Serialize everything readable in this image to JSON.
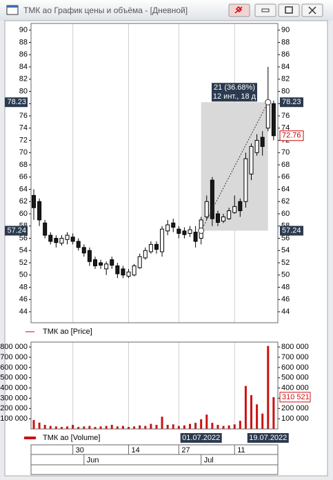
{
  "window": {
    "title": "ТМК ао График цены и объёма - [Дневной]"
  },
  "chart_data": [
    {
      "type": "candlestick",
      "legend": "ТМК ао [Price]",
      "open": [
        63,
        62,
        58.5,
        56.5,
        56,
        55.2,
        55.8,
        56.2,
        55.5,
        54.5,
        54,
        52.5,
        52,
        51,
        52.5,
        51.5,
        51,
        49.8,
        50,
        51.2,
        52.8,
        53.8,
        55,
        53.8,
        57.2,
        58.5,
        57.5,
        57.2,
        56.8,
        57,
        56,
        59.5,
        65.5,
        60,
        58.8,
        59.2,
        60.2,
        62,
        62,
        66.5,
        70,
        72.5,
        74,
        78
      ],
      "high": [
        64,
        62.5,
        59,
        57,
        56.5,
        56.5,
        57,
        56.8,
        56,
        55,
        54.5,
        53,
        52.5,
        52.2,
        53,
        52,
        51.5,
        51,
        51.8,
        53.5,
        54.5,
        55.5,
        55.5,
        58,
        59,
        59.2,
        58,
        57.8,
        58,
        58,
        59.5,
        63,
        66,
        60.5,
        60,
        61,
        63,
        62.5,
        70,
        71.5,
        73,
        73.5,
        84,
        78.5
      ],
      "low": [
        59,
        58,
        56,
        55,
        54.5,
        54.8,
        55,
        55,
        54,
        53,
        51.5,
        51,
        51,
        50,
        51,
        49.5,
        49.5,
        49.5,
        49.8,
        51,
        52.5,
        53.5,
        53.5,
        53,
        56.5,
        57,
        56,
        56,
        56.2,
        54.5,
        55,
        59,
        58,
        58,
        58.5,
        59,
        60,
        59.5,
        61,
        65.5,
        69.5,
        69.5,
        73.5,
        72
      ],
      "close": [
        61,
        59,
        56.5,
        55.5,
        55.3,
        56,
        56.5,
        55.5,
        54.5,
        53.6,
        52.2,
        51.5,
        51.6,
        51.8,
        51.6,
        50.2,
        50,
        50.5,
        51.5,
        53,
        54,
        55,
        54.2,
        57.5,
        58.2,
        57.8,
        56.8,
        56.6,
        57.4,
        55.5,
        59,
        62,
        59.2,
        58.6,
        59.5,
        60.5,
        61.2,
        60.5,
        69,
        71,
        72,
        71,
        78,
        72.76
      ],
      "ylim": [
        42.2,
        91.1
      ],
      "yticks": [
        44,
        46,
        48,
        50,
        52,
        54,
        56,
        58,
        60,
        62,
        64,
        66,
        68,
        70,
        72,
        74,
        76,
        78,
        80,
        82,
        84,
        86,
        88,
        90
      ],
      "grid": true,
      "measure": {
        "from": 57.24,
        "to": 78.23,
        "change_label": "21 (36.68%)",
        "span_label": "12 инт., 18 д"
      }
    },
    {
      "type": "bar",
      "legend": "ТМК ао [Volume]",
      "color": "#cc1111",
      "values": [
        87000,
        62000,
        40000,
        30000,
        25000,
        20000,
        25000,
        40000,
        20000,
        25000,
        30000,
        20000,
        25000,
        30000,
        40000,
        25000,
        30000,
        20000,
        25000,
        35000,
        30000,
        50000,
        40000,
        120000,
        40000,
        45000,
        30000,
        35000,
        50000,
        60000,
        95000,
        140000,
        60000,
        40000,
        30000,
        35000,
        45000,
        80000,
        420000,
        330000,
        240000,
        150000,
        810000,
        310521
      ],
      "value_labels": [
        null,
        null,
        null,
        null,
        null,
        null,
        null,
        null,
        null,
        null,
        null,
        null,
        null,
        null,
        null,
        null,
        null,
        null,
        null,
        null,
        null,
        null,
        null,
        null,
        null,
        null,
        null,
        null,
        null,
        null,
        null,
        null,
        null,
        null,
        null,
        null,
        null,
        null,
        null,
        null,
        null,
        null,
        null,
        "310 521"
      ],
      "ylim": [
        0,
        848000
      ],
      "yticks": [
        {
          "value": 100000,
          "label": "100 000"
        },
        {
          "value": 200000,
          "label": "200 000"
        },
        {
          "value": 300000,
          "label": "300 000"
        },
        {
          "value": 400000,
          "label": "400 000"
        },
        {
          "value": 500000,
          "label": "500 000"
        },
        {
          "value": 600000,
          "label": "600 000"
        },
        {
          "value": 700000,
          "label": "700 000"
        },
        {
          "value": 800000,
          "label": "800 000"
        }
      ],
      "grid": true,
      "categories": [
        null,
        null,
        null,
        null,
        null,
        null,
        null,
        "30",
        null,
        null,
        null,
        null,
        null,
        null,
        null,
        null,
        null,
        "14",
        null,
        null,
        null,
        null,
        null,
        null,
        null,
        null,
        "27",
        null,
        null,
        null,
        null,
        null,
        null,
        null,
        null,
        null,
        "11",
        null,
        null,
        null,
        null,
        null,
        null,
        null
      ],
      "months": [
        null,
        null,
        null,
        null,
        null,
        null,
        null,
        null,
        null,
        "Jun",
        null,
        null,
        null,
        null,
        null,
        null,
        null,
        null,
        null,
        null,
        null,
        null,
        null,
        null,
        null,
        null,
        null,
        null,
        null,
        null,
        "Jul",
        null,
        null,
        null,
        null,
        null,
        null,
        null,
        null,
        null,
        null,
        null,
        null,
        null
      ],
      "cursor_labels": [
        "01.07.2022",
        "19.07.2022"
      ]
    }
  ]
}
